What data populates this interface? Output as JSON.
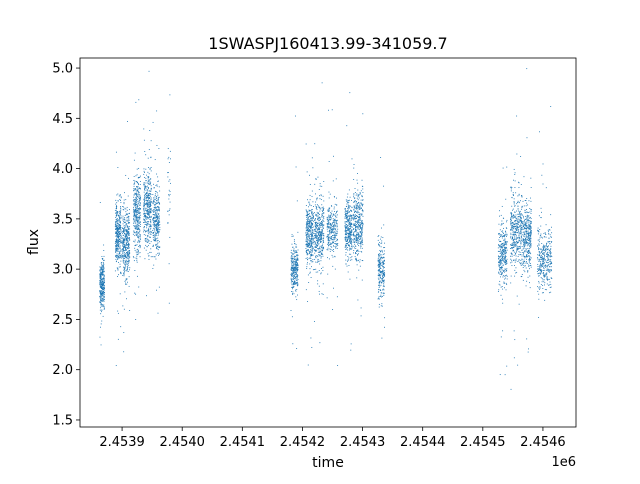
{
  "chart_data": {
    "type": "scatter",
    "title": "1SWASPJ160413.99-341059.7",
    "xlabel": "time",
    "ylabel": "flux",
    "x_offset_label": "1e6",
    "x_scale": 1000000,
    "xlim": [
      2453830,
      2454655
    ],
    "ylim": [
      1.43,
      5.1
    ],
    "xticks": [
      2453900,
      2454000,
      2454100,
      2454200,
      2454300,
      2454400,
      2454500,
      2454600
    ],
    "xtick_labels": [
      "2.4539",
      "2.4540",
      "2.4541",
      "2.4542",
      "2.4543",
      "2.4544",
      "2.4545",
      "2.4546"
    ],
    "yticks": [
      1.5,
      2.0,
      2.5,
      3.0,
      3.5,
      4.0,
      4.5,
      5.0
    ],
    "ytick_labels": [
      "1.5",
      "2.0",
      "2.5",
      "3.0",
      "3.5",
      "4.0",
      "4.5",
      "5.0"
    ],
    "grid": false,
    "marker_color": "#1f77b4",
    "series": [
      {
        "clusters": [
          {
            "x_range": [
              2453862,
              2453870
            ],
            "center": 2.85,
            "spread": 0.22,
            "count": 320
          },
          {
            "x_range": [
              2453888,
              2453898
            ],
            "center": 3.35,
            "spread": 0.3,
            "count": 360
          },
          {
            "x_range": [
              2453900,
              2453912
            ],
            "center": 3.25,
            "spread": 0.3,
            "count": 380
          },
          {
            "x_range": [
              2453918,
              2453930
            ],
            "center": 3.55,
            "spread": 0.38,
            "count": 360
          },
          {
            "x_range": [
              2453935,
              2453948
            ],
            "center": 3.6,
            "spread": 0.38,
            "count": 380
          },
          {
            "x_range": [
              2453950,
              2453962
            ],
            "center": 3.5,
            "spread": 0.3,
            "count": 300
          },
          {
            "x_range": [
              2453975,
              2453980
            ],
            "center": 3.8,
            "spread": 0.4,
            "count": 30
          },
          {
            "x_range": [
              2454180,
              2454192
            ],
            "center": 3.0,
            "spread": 0.22,
            "count": 300
          },
          {
            "x_range": [
              2454205,
              2454218
            ],
            "center": 3.35,
            "spread": 0.28,
            "count": 360
          },
          {
            "x_range": [
              2454219,
              2454235
            ],
            "center": 3.35,
            "spread": 0.3,
            "count": 380
          },
          {
            "x_range": [
              2454240,
              2454258
            ],
            "center": 3.4,
            "spread": 0.25,
            "count": 280
          },
          {
            "x_range": [
              2454270,
              2454282
            ],
            "center": 3.4,
            "spread": 0.28,
            "count": 340
          },
          {
            "x_range": [
              2454284,
              2454300
            ],
            "center": 3.45,
            "spread": 0.3,
            "count": 380
          },
          {
            "x_range": [
              2454325,
              2454336
            ],
            "center": 3.0,
            "spread": 0.25,
            "count": 240
          },
          {
            "x_range": [
              2454525,
              2454540
            ],
            "center": 3.15,
            "spread": 0.3,
            "count": 300
          },
          {
            "x_range": [
              2454545,
              2454565
            ],
            "center": 3.4,
            "spread": 0.35,
            "count": 420
          },
          {
            "x_range": [
              2454566,
              2454580
            ],
            "center": 3.3,
            "spread": 0.3,
            "count": 340
          },
          {
            "x_range": [
              2454590,
              2454614
            ],
            "center": 3.1,
            "spread": 0.28,
            "count": 360
          }
        ]
      }
    ]
  }
}
